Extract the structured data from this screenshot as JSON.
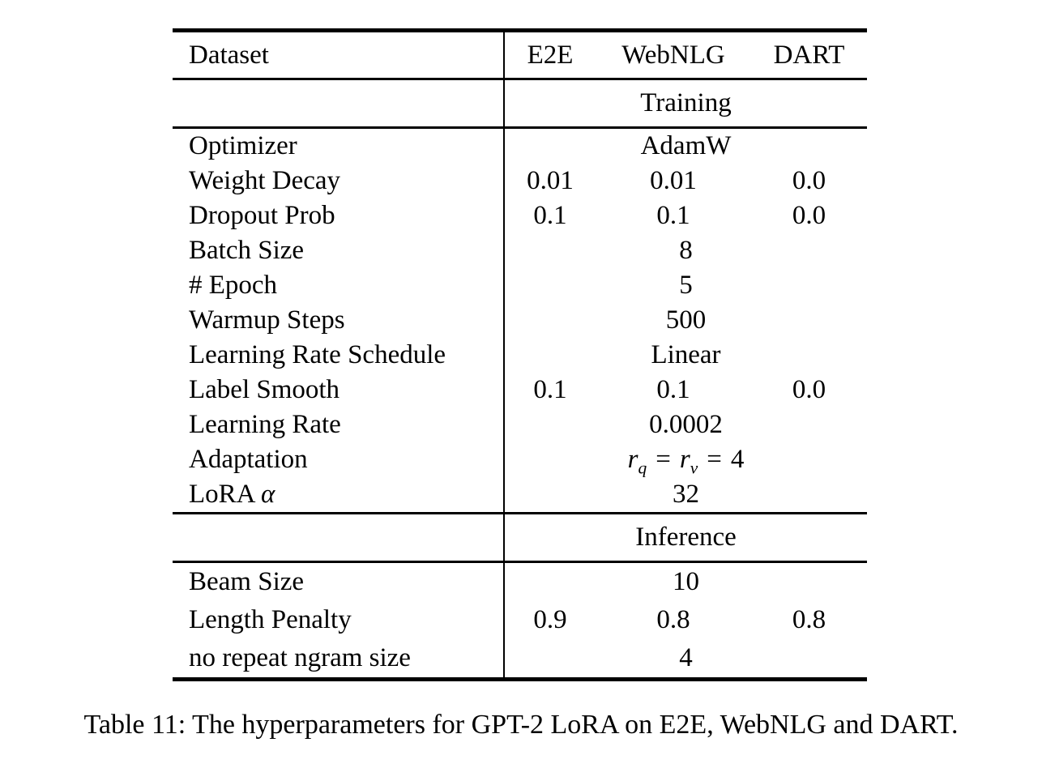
{
  "colors": {
    "background": "#ffffff",
    "text": "#000000",
    "rule": "#000000"
  },
  "table": {
    "header": {
      "label": "Dataset",
      "columns": [
        "E2E",
        "WebNLG",
        "DART"
      ]
    },
    "sections": [
      {
        "title": "Training",
        "rows": [
          {
            "label": "Optimizer",
            "span": "AdamW"
          },
          {
            "label": "Weight Decay",
            "values": [
              "0.01",
              "0.01",
              "0.0"
            ]
          },
          {
            "label": "Dropout Prob",
            "values": [
              "0.1",
              "0.1",
              "0.0"
            ]
          },
          {
            "label": "Batch Size",
            "span": "8"
          },
          {
            "label": "# Epoch",
            "span": "5"
          },
          {
            "label": "Warmup Steps",
            "span": "500"
          },
          {
            "label": "Learning Rate Schedule",
            "span": "Linear"
          },
          {
            "label": "Label Smooth",
            "values": [
              "0.1",
              "0.1",
              "0.0"
            ]
          },
          {
            "label": "Learning Rate",
            "span": "0.0002"
          },
          {
            "label": "Adaptation",
            "formula": {
              "var1": "r",
              "sub1": "q",
              "eq1": "=",
              "var2": "r",
              "sub2": "v",
              "eq2": "=",
              "value": "4"
            }
          },
          {
            "label_text": "LoRA",
            "label_math": "α",
            "span": "32"
          }
        ]
      },
      {
        "title": "Inference",
        "rows": [
          {
            "label": "Beam Size",
            "span": "10"
          },
          {
            "label": "Length Penalty",
            "values": [
              "0.9",
              "0.8",
              "0.8"
            ]
          },
          {
            "label": "no repeat ngram size",
            "span": "4"
          }
        ]
      }
    ]
  },
  "caption": "Table 11: The hyperparameters for GPT-2 LoRA on E2E, WebNLG and DART."
}
